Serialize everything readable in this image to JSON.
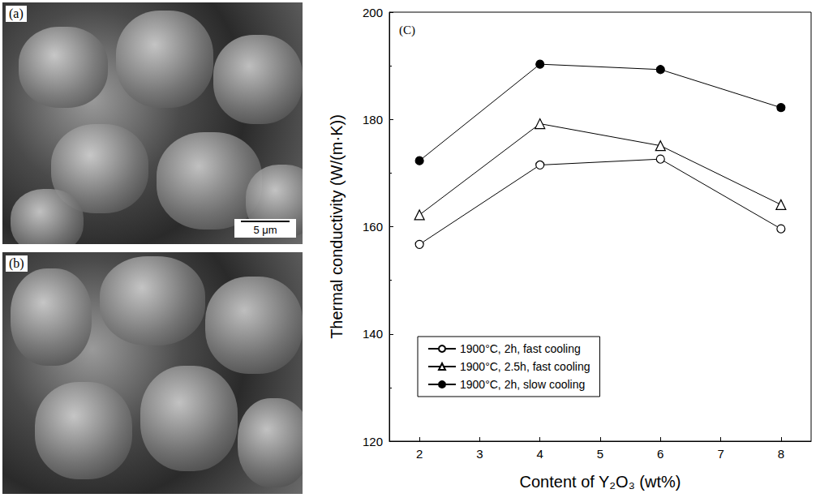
{
  "chart_data": {
    "type": "line",
    "panel_label": "(C)",
    "x_label": "Content of Y₂O₃ (wt%)",
    "y_label": "Thermal conductivity (W/(m·K))",
    "x": [
      2,
      4,
      6,
      8
    ],
    "series": [
      {
        "name": "1900°C, 2h, fast cooling",
        "color": "#000000",
        "marker": "open_circle",
        "values": [
          156.7,
          171.5,
          172.6,
          159.6
        ]
      },
      {
        "name": "1900°C, 2.5h, fast cooling",
        "color": "#000000",
        "marker": "open_triangle",
        "values": [
          162.2,
          179.2,
          175.1,
          164.1
        ]
      },
      {
        "name": "1900°C, 2h, slow cooling",
        "color": "#000000",
        "marker": "filled_circle",
        "values": [
          172.3,
          190.3,
          189.3,
          182.2
        ]
      }
    ],
    "xlim": [
      1.5,
      8.5
    ],
    "xticks": [
      2,
      3,
      4,
      5,
      6,
      7,
      8
    ],
    "ylim": [
      120,
      200
    ],
    "yticks": [
      120,
      140,
      160,
      180,
      200
    ],
    "grid": false,
    "legend": "lower left"
  },
  "images": [
    {
      "label": "(a)",
      "scale_bar": "5 μm"
    },
    {
      "label": "(b)"
    }
  ]
}
